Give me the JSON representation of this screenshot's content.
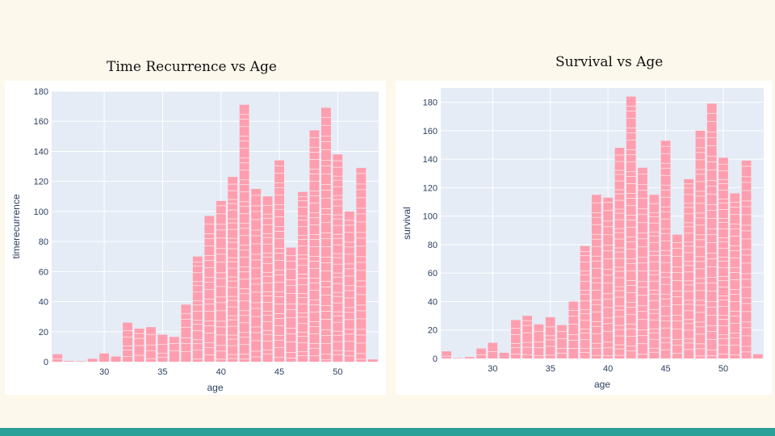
{
  "titles": {
    "left": "Time Recurrence vs Age",
    "right": "Survival vs Age"
  },
  "colors": {
    "background": "#fdf8ec",
    "plot_bg": "#e5ecf6",
    "bar": "#ff9eae",
    "footer": "#2aa198"
  },
  "chart_data": [
    {
      "type": "bar",
      "title": "Time Recurrence vs Age",
      "xlabel": "age",
      "ylabel": "timerecurrence",
      "xlim": [
        25.5,
        53.5
      ],
      "ylim": [
        0,
        180
      ],
      "xticks": [
        30,
        35,
        40,
        45,
        50
      ],
      "yticks": [
        0,
        20,
        40,
        60,
        80,
        100,
        120,
        140,
        160,
        180
      ],
      "grid": true,
      "x": [
        26,
        27,
        28,
        29,
        30,
        31,
        32,
        33,
        34,
        35,
        36,
        37,
        38,
        39,
        40,
        41,
        42,
        43,
        44,
        45,
        46,
        47,
        48,
        49,
        50,
        51,
        52,
        53
      ],
      "values": [
        5,
        0.5,
        0.3,
        2,
        5.5,
        3.5,
        26,
        22,
        23,
        18,
        16.5,
        38,
        70,
        97,
        107,
        123,
        171,
        115,
        110,
        134,
        76,
        113,
        154,
        169,
        138,
        100,
        129,
        1.5
      ]
    },
    {
      "type": "bar",
      "title": "Survival vs Age",
      "xlabel": "age",
      "ylabel": "survival",
      "xlim": [
        25.5,
        53.5
      ],
      "ylim": [
        0,
        190
      ],
      "xticks": [
        30,
        35,
        40,
        45,
        50
      ],
      "yticks": [
        0,
        20,
        40,
        60,
        80,
        100,
        120,
        140,
        160,
        180
      ],
      "grid": true,
      "x": [
        26,
        27,
        28,
        29,
        30,
        31,
        32,
        33,
        34,
        35,
        36,
        37,
        38,
        39,
        40,
        41,
        42,
        43,
        44,
        45,
        46,
        47,
        48,
        49,
        50,
        51,
        52,
        53
      ],
      "values": [
        5,
        0.3,
        1,
        7,
        11,
        4,
        27,
        30,
        24,
        29,
        23.5,
        40,
        79,
        115,
        113,
        148,
        184,
        134,
        115,
        153,
        87,
        126,
        160,
        179,
        141,
        116,
        139,
        3
      ]
    }
  ]
}
